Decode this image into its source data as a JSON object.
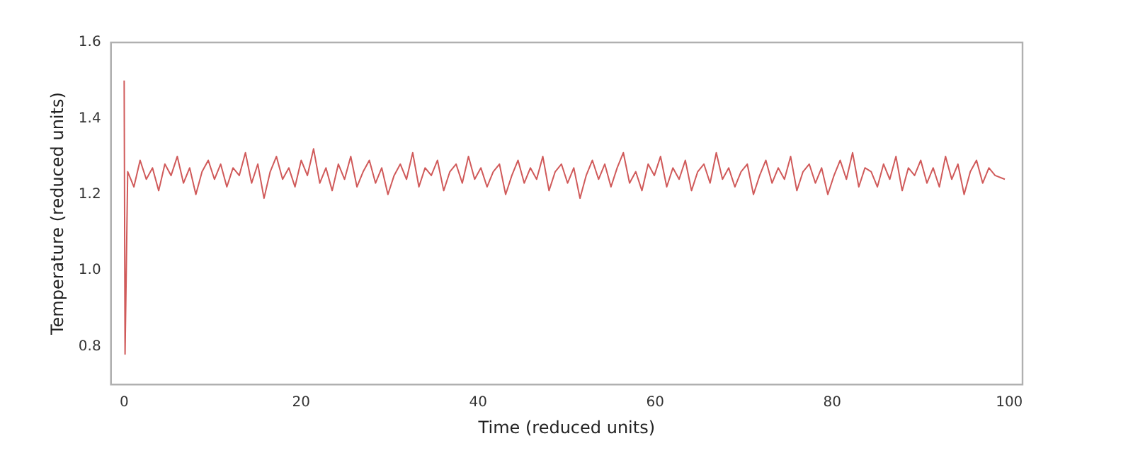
{
  "chart_data": {
    "type": "line",
    "xlabel": "Time (reduced units)",
    "ylabel": "Temperature (reduced units)",
    "xlim": [
      -1.5,
      101.5
    ],
    "ylim": [
      0.7,
      1.6
    ],
    "xticks": [
      0,
      20,
      40,
      60,
      80,
      100
    ],
    "yticks": [
      {
        "value": 0.8,
        "label": "0.8"
      },
      {
        "value": 1.0,
        "label": "1.0"
      },
      {
        "value": 1.2,
        "label": "1.2"
      },
      {
        "value": 1.4,
        "label": "1.4"
      },
      {
        "value": 1.6,
        "label": "1.6"
      }
    ],
    "grid": false,
    "legend": false,
    "marker": "none",
    "line_style": "solid",
    "series": [
      {
        "color": "#d05a5a",
        "x": [
          0,
          0.1,
          0.4,
          1.1,
          1.8,
          2.5,
          3.2,
          3.9,
          4.6,
          5.3,
          6,
          6.7,
          7.4,
          8.1,
          8.8,
          9.5,
          10.2,
          10.9,
          11.6,
          12.3,
          13,
          13.7,
          14.4,
          15.1,
          15.8,
          16.5,
          17.2,
          17.9,
          18.6,
          19.3,
          20,
          20.7,
          21.4,
          22.1,
          22.8,
          23.5,
          24.2,
          24.9,
          25.6,
          26.3,
          27,
          27.7,
          28.4,
          29.1,
          29.8,
          30.5,
          31.2,
          31.9,
          32.6,
          33.3,
          34,
          34.7,
          35.4,
          36.1,
          36.8,
          37.5,
          38.2,
          38.9,
          39.6,
          40.3,
          41,
          41.7,
          42.4,
          43.1,
          43.8,
          44.5,
          45.2,
          45.9,
          46.6,
          47.3,
          48,
          48.7,
          49.4,
          50.1,
          50.8,
          51.5,
          52.2,
          52.9,
          53.6,
          54.3,
          55,
          55.7,
          56.4,
          57.1,
          57.8,
          58.5,
          59.2,
          59.9,
          60.6,
          61.3,
          62,
          62.7,
          63.4,
          64.1,
          64.8,
          65.5,
          66.2,
          66.9,
          67.6,
          68.3,
          69,
          69.7,
          70.4,
          71.1,
          71.8,
          72.5,
          73.2,
          73.9,
          74.6,
          75.3,
          76,
          76.7,
          77.4,
          78.1,
          78.8,
          79.5,
          80.2,
          80.9,
          81.6,
          82.3,
          83,
          83.7,
          84.4,
          85.1,
          85.8,
          86.5,
          87.2,
          87.9,
          88.6,
          89.3,
          90,
          90.7,
          91.4,
          92.1,
          92.8,
          93.5,
          94.2,
          94.9,
          95.6,
          96.3,
          97,
          97.7,
          98.4,
          99.5
        ],
        "values": [
          1.5,
          0.78,
          1.26,
          1.22,
          1.29,
          1.24,
          1.27,
          1.21,
          1.28,
          1.25,
          1.3,
          1.23,
          1.27,
          1.2,
          1.26,
          1.29,
          1.24,
          1.28,
          1.22,
          1.27,
          1.25,
          1.31,
          1.23,
          1.28,
          1.19,
          1.26,
          1.3,
          1.24,
          1.27,
          1.22,
          1.29,
          1.25,
          1.32,
          1.23,
          1.27,
          1.21,
          1.28,
          1.24,
          1.3,
          1.22,
          1.26,
          1.29,
          1.23,
          1.27,
          1.2,
          1.25,
          1.28,
          1.24,
          1.31,
          1.22,
          1.27,
          1.25,
          1.29,
          1.21,
          1.26,
          1.28,
          1.23,
          1.3,
          1.24,
          1.27,
          1.22,
          1.26,
          1.28,
          1.2,
          1.25,
          1.29,
          1.23,
          1.27,
          1.24,
          1.3,
          1.21,
          1.26,
          1.28,
          1.23,
          1.27,
          1.19,
          1.25,
          1.29,
          1.24,
          1.28,
          1.22,
          1.27,
          1.31,
          1.23,
          1.26,
          1.21,
          1.28,
          1.25,
          1.3,
          1.22,
          1.27,
          1.24,
          1.29,
          1.21,
          1.26,
          1.28,
          1.23,
          1.31,
          1.24,
          1.27,
          1.22,
          1.26,
          1.28,
          1.2,
          1.25,
          1.29,
          1.23,
          1.27,
          1.24,
          1.3,
          1.21,
          1.26,
          1.28,
          1.23,
          1.27,
          1.2,
          1.25,
          1.29,
          1.24,
          1.31,
          1.22,
          1.27,
          1.26,
          1.22,
          1.28,
          1.24,
          1.3,
          1.21,
          1.27,
          1.25,
          1.29,
          1.23,
          1.27,
          1.22,
          1.3,
          1.24,
          1.28,
          1.2,
          1.26,
          1.29,
          1.23,
          1.27,
          1.25,
          1.24
        ]
      }
    ]
  }
}
